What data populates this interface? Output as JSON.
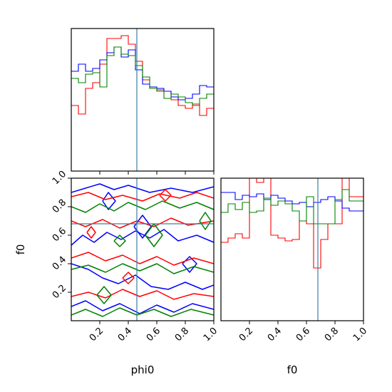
{
  "chart_data": {
    "type": "corner",
    "parameters": [
      "phi0",
      "f0"
    ],
    "xlabel": "phi0",
    "ylabel": "f0",
    "xlim": [
      0,
      1
    ],
    "ylim": [
      0,
      1
    ],
    "ticks": [
      0.2,
      0.4,
      0.6,
      0.8,
      1.0
    ],
    "tick_labels": [
      "0.2",
      "0.4",
      "0.6",
      "0.8",
      "1.0"
    ],
    "truth": {
      "phi0": 0.46,
      "f0": 0.68
    },
    "colors": {
      "red": "#ff0000",
      "blue": "#0000ff",
      "green": "#008000",
      "truth": "#3b7fa6"
    },
    "hist_phi0": {
      "bins": 20,
      "series": [
        {
          "color": "red",
          "values": [
            0.46,
            0.4,
            0.58,
            0.62,
            0.75,
            0.93,
            0.93,
            0.95,
            0.89,
            0.77,
            0.64,
            0.58,
            0.57,
            0.56,
            0.5,
            0.46,
            0.44,
            0.47,
            0.39,
            0.44
          ]
        },
        {
          "color": "blue",
          "values": [
            0.7,
            0.75,
            0.7,
            0.72,
            0.78,
            0.83,
            0.87,
            0.8,
            0.85,
            0.71,
            0.61,
            0.59,
            0.58,
            0.56,
            0.52,
            0.5,
            0.51,
            0.54,
            0.6,
            0.59
          ]
        },
        {
          "color": "green",
          "values": [
            0.65,
            0.62,
            0.68,
            0.69,
            0.59,
            0.81,
            0.87,
            0.82,
            0.81,
            0.74,
            0.66,
            0.58,
            0.56,
            0.51,
            0.54,
            0.52,
            0.48,
            0.46,
            0.51,
            0.54
          ]
        }
      ]
    },
    "hist_f0": {
      "bins": 20,
      "series": [
        {
          "color": "red",
          "values": [
            0.55,
            0.58,
            0.61,
            0.58,
            1.1,
            0.97,
            1.1,
            0.6,
            0.58,
            0.56,
            0.57,
            0.7,
            0.68,
            0.37,
            0.57,
            0.68,
            0.68,
            1.1,
            0.87,
            0.87
          ]
        },
        {
          "color": "blue",
          "values": [
            0.9,
            0.9,
            0.85,
            0.88,
            0.87,
            0.89,
            0.85,
            0.88,
            0.86,
            0.84,
            0.82,
            0.83,
            0.8,
            0.83,
            0.85,
            0.87,
            0.84,
            0.79,
            0.77,
            0.77
          ]
        },
        {
          "color": "green",
          "values": [
            0.76,
            0.82,
            0.78,
            0.83,
            0.76,
            0.77,
            0.86,
            0.81,
            0.84,
            0.82,
            0.77,
            0.7,
            0.87,
            0.68,
            0.68,
            0.68,
            0.85,
            0.92,
            0.84,
            0.84
          ]
        }
      ]
    },
    "contours_2d": [
      {
        "color": "blue",
        "paths": [
          [
            [
              0.0,
              0.9
            ],
            [
              0.1,
              0.93
            ],
            [
              0.2,
              0.96
            ],
            [
              0.3,
              0.92
            ],
            [
              0.4,
              0.95
            ],
            [
              0.55,
              0.9
            ],
            [
              0.7,
              0.93
            ],
            [
              0.85,
              0.9
            ],
            [
              1.0,
              0.94
            ]
          ],
          [
            [
              0.0,
              0.53
            ],
            [
              0.08,
              0.6
            ],
            [
              0.16,
              0.55
            ],
            [
              0.25,
              0.62
            ],
            [
              0.35,
              0.57
            ],
            [
              0.45,
              0.63
            ],
            [
              0.55,
              0.58
            ],
            [
              0.65,
              0.64
            ],
            [
              0.75,
              0.56
            ],
            [
              0.88,
              0.6
            ],
            [
              1.0,
              0.55
            ]
          ],
          [
            [
              0.0,
              0.4
            ],
            [
              0.12,
              0.36
            ],
            [
              0.22,
              0.3
            ],
            [
              0.33,
              0.26
            ],
            [
              0.45,
              0.32
            ],
            [
              0.56,
              0.24
            ],
            [
              0.68,
              0.22
            ],
            [
              0.8,
              0.27
            ],
            [
              0.92,
              0.22
            ],
            [
              1.0,
              0.25
            ]
          ],
          [
            [
              0.0,
              0.1
            ],
            [
              0.1,
              0.14
            ],
            [
              0.22,
              0.07
            ],
            [
              0.34,
              0.12
            ],
            [
              0.48,
              0.05
            ],
            [
              0.6,
              0.11
            ],
            [
              0.72,
              0.06
            ],
            [
              0.85,
              0.12
            ],
            [
              1.0,
              0.08
            ]
          ],
          [
            [
              0.44,
              0.66
            ],
            [
              0.5,
              0.74
            ],
            [
              0.56,
              0.66
            ],
            [
              0.5,
              0.58
            ],
            [
              0.44,
              0.66
            ]
          ],
          [
            [
              0.22,
              0.84
            ],
            [
              0.26,
              0.9
            ],
            [
              0.31,
              0.84
            ],
            [
              0.26,
              0.78
            ],
            [
              0.22,
              0.84
            ]
          ],
          [
            [
              0.78,
              0.4
            ],
            [
              0.83,
              0.45
            ],
            [
              0.88,
              0.4
            ],
            [
              0.83,
              0.34
            ],
            [
              0.78,
              0.4
            ]
          ]
        ]
      },
      {
        "color": "red",
        "paths": [
          [
            [
              0.0,
              0.87
            ],
            [
              0.12,
              0.9
            ],
            [
              0.24,
              0.85
            ],
            [
              0.36,
              0.88
            ],
            [
              0.5,
              0.84
            ],
            [
              0.62,
              0.89
            ],
            [
              0.76,
              0.86
            ],
            [
              0.88,
              0.9
            ],
            [
              1.0,
              0.86
            ]
          ],
          [
            [
              0.0,
              0.7
            ],
            [
              0.1,
              0.66
            ],
            [
              0.22,
              0.71
            ],
            [
              0.34,
              0.65
            ],
            [
              0.46,
              0.7
            ],
            [
              0.58,
              0.66
            ],
            [
              0.7,
              0.72
            ],
            [
              0.82,
              0.67
            ],
            [
              1.0,
              0.7
            ]
          ],
          [
            [
              0.0,
              0.44
            ],
            [
              0.12,
              0.48
            ],
            [
              0.24,
              0.42
            ],
            [
              0.36,
              0.46
            ],
            [
              0.48,
              0.4
            ],
            [
              0.6,
              0.45
            ],
            [
              0.72,
              0.39
            ],
            [
              0.86,
              0.44
            ],
            [
              1.0,
              0.4
            ]
          ],
          [
            [
              0.0,
              0.17
            ],
            [
              0.12,
              0.2
            ],
            [
              0.24,
              0.16
            ],
            [
              0.36,
              0.22
            ],
            [
              0.48,
              0.17
            ],
            [
              0.6,
              0.21
            ],
            [
              0.72,
              0.15
            ],
            [
              0.86,
              0.19
            ],
            [
              1.0,
              0.17
            ]
          ],
          [
            [
              0.11,
              0.62
            ],
            [
              0.14,
              0.66
            ],
            [
              0.17,
              0.62
            ],
            [
              0.14,
              0.58
            ],
            [
              0.11,
              0.62
            ]
          ],
          [
            [
              0.62,
              0.88
            ],
            [
              0.66,
              0.92
            ],
            [
              0.7,
              0.88
            ],
            [
              0.66,
              0.84
            ],
            [
              0.62,
              0.88
            ]
          ],
          [
            [
              0.36,
              0.3
            ],
            [
              0.4,
              0.34
            ],
            [
              0.44,
              0.3
            ],
            [
              0.4,
              0.26
            ],
            [
              0.36,
              0.3
            ]
          ]
        ]
      },
      {
        "color": "green",
        "paths": [
          [
            [
              0.0,
              0.8
            ],
            [
              0.1,
              0.76
            ],
            [
              0.2,
              0.82
            ],
            [
              0.3,
              0.77
            ],
            [
              0.4,
              0.83
            ],
            [
              0.52,
              0.78
            ],
            [
              0.64,
              0.84
            ],
            [
              0.76,
              0.79
            ],
            [
              0.88,
              0.83
            ],
            [
              1.0,
              0.78
            ]
          ],
          [
            [
              0.0,
              0.36
            ],
            [
              0.12,
              0.39
            ],
            [
              0.24,
              0.34
            ],
            [
              0.36,
              0.4
            ],
            [
              0.48,
              0.35
            ],
            [
              0.6,
              0.4
            ],
            [
              0.72,
              0.33
            ],
            [
              0.86,
              0.38
            ],
            [
              1.0,
              0.34
            ]
          ],
          [
            [
              0.0,
              0.04
            ],
            [
              0.1,
              0.08
            ],
            [
              0.22,
              0.03
            ],
            [
              0.34,
              0.09
            ],
            [
              0.46,
              0.04
            ],
            [
              0.58,
              0.08
            ],
            [
              0.7,
              0.03
            ],
            [
              0.84,
              0.08
            ],
            [
              1.0,
              0.04
            ]
          ],
          [
            [
              0.52,
              0.6
            ],
            [
              0.58,
              0.68
            ],
            [
              0.64,
              0.6
            ],
            [
              0.58,
              0.52
            ],
            [
              0.52,
              0.6
            ]
          ],
          [
            [
              0.18,
              0.18
            ],
            [
              0.23,
              0.24
            ],
            [
              0.28,
              0.18
            ],
            [
              0.23,
              0.12
            ],
            [
              0.18,
              0.18
            ]
          ],
          [
            [
              0.9,
              0.7
            ],
            [
              0.94,
              0.76
            ],
            [
              0.98,
              0.7
            ],
            [
              0.94,
              0.64
            ],
            [
              0.9,
              0.7
            ]
          ],
          [
            [
              0.3,
              0.56
            ],
            [
              0.34,
              0.6
            ],
            [
              0.38,
              0.56
            ],
            [
              0.34,
              0.52
            ],
            [
              0.3,
              0.56
            ]
          ]
        ]
      }
    ]
  }
}
